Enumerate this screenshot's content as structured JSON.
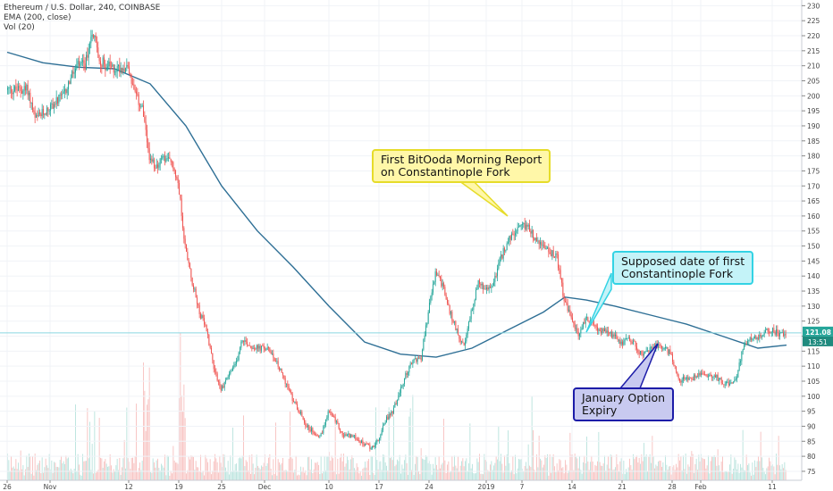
{
  "header": {
    "symbol_line": "Ethereum / U.S. Dollar, 240, COINBASE",
    "ema_line": "EMA (200, close)",
    "vol_line": "Vol (20)"
  },
  "chart_data": {
    "type": "candlestick",
    "title": "Ethereum / U.S. Dollar, 240, COINBASE",
    "ylim": [
      72,
      231
    ],
    "y_ticks": [
      75,
      80,
      85,
      90,
      95,
      100,
      105,
      110,
      115,
      120,
      125,
      130,
      135,
      140,
      145,
      150,
      155,
      160,
      165,
      170,
      175,
      180,
      185,
      190,
      195,
      200,
      205,
      210,
      215,
      220,
      225,
      230
    ],
    "x_labels": [
      {
        "label": "26",
        "t": 0
      },
      {
        "label": "Nov",
        "t": 6
      },
      {
        "label": "12",
        "t": 17
      },
      {
        "label": "19",
        "t": 24
      },
      {
        "label": "25",
        "t": 30
      },
      {
        "label": "Dec",
        "t": 36
      },
      {
        "label": "10",
        "t": 45
      },
      {
        "label": "17",
        "t": 52
      },
      {
        "label": "24",
        "t": 59
      },
      {
        "label": "2019",
        "t": 67
      },
      {
        "label": "7",
        "t": 72
      },
      {
        "label": "14",
        "t": 79
      },
      {
        "label": "21",
        "t": 86
      },
      {
        "label": "28",
        "t": 93
      },
      {
        "label": "Feb",
        "t": 97
      },
      {
        "label": "11",
        "t": 107
      }
    ],
    "x_unit_note": "t = day index from Oct 26",
    "price_path": [
      [
        0,
        202
      ],
      [
        3,
        202
      ],
      [
        4,
        192
      ],
      [
        6,
        196
      ],
      [
        8,
        200
      ],
      [
        9,
        206
      ],
      [
        10,
        210
      ],
      [
        11,
        210
      ],
      [
        12,
        222
      ],
      [
        13,
        212
      ],
      [
        14,
        210
      ],
      [
        15,
        209
      ],
      [
        17,
        210
      ],
      [
        18,
        200
      ],
      [
        19,
        196
      ],
      [
        20,
        178
      ],
      [
        21,
        177
      ],
      [
        22,
        179
      ],
      [
        23,
        178
      ],
      [
        24,
        172
      ],
      [
        25,
        150
      ],
      [
        26,
        138
      ],
      [
        27,
        128
      ],
      [
        28,
        122
      ],
      [
        29,
        110
      ],
      [
        30,
        102
      ],
      [
        31,
        107
      ],
      [
        32,
        110
      ],
      [
        33,
        119
      ],
      [
        34,
        117
      ],
      [
        35,
        116
      ],
      [
        36,
        116
      ],
      [
        37,
        115
      ],
      [
        38,
        110
      ],
      [
        39,
        105
      ],
      [
        40,
        99
      ],
      [
        41,
        95
      ],
      [
        42,
        90
      ],
      [
        43,
        88
      ],
      [
        44,
        87
      ],
      [
        45,
        95
      ],
      [
        46,
        92
      ],
      [
        47,
        87
      ],
      [
        48,
        87
      ],
      [
        49,
        86
      ],
      [
        50,
        84
      ],
      [
        51,
        83
      ],
      [
        52,
        85
      ],
      [
        53,
        92
      ],
      [
        54,
        95
      ],
      [
        55,
        101
      ],
      [
        56,
        108
      ],
      [
        57,
        112
      ],
      [
        58,
        113
      ],
      [
        59,
        128
      ],
      [
        60,
        141
      ],
      [
        61,
        137
      ],
      [
        62,
        128
      ],
      [
        63,
        122
      ],
      [
        64,
        116
      ],
      [
        65,
        128
      ],
      [
        66,
        138
      ],
      [
        67,
        135
      ],
      [
        68,
        137
      ],
      [
        69,
        145
      ],
      [
        70,
        151
      ],
      [
        71,
        154
      ],
      [
        72,
        156
      ],
      [
        73,
        157
      ],
      [
        74,
        152
      ],
      [
        75,
        150
      ],
      [
        76,
        148
      ],
      [
        77,
        146
      ],
      [
        78,
        132
      ],
      [
        79,
        126
      ],
      [
        80,
        120
      ],
      [
        81,
        126
      ],
      [
        82,
        124
      ],
      [
        83,
        122
      ],
      [
        84,
        121
      ],
      [
        85,
        120
      ],
      [
        86,
        118
      ],
      [
        87,
        119
      ],
      [
        88,
        117
      ],
      [
        89,
        113
      ],
      [
        90,
        116
      ],
      [
        91,
        117
      ],
      [
        92,
        116
      ],
      [
        93,
        114
      ],
      [
        94,
        105
      ],
      [
        95,
        106
      ],
      [
        96,
        106
      ],
      [
        97,
        108
      ],
      [
        98,
        107
      ],
      [
        99,
        107
      ],
      [
        100,
        105
      ],
      [
        101,
        104
      ],
      [
        102,
        105
      ],
      [
        103,
        116
      ],
      [
        104,
        120
      ],
      [
        105,
        119
      ],
      [
        106,
        121
      ],
      [
        107,
        122
      ],
      [
        108,
        121
      ],
      [
        109,
        121
      ]
    ],
    "ema200": {
      "name": "EMA (200, close)",
      "points": [
        [
          0,
          214.5
        ],
        [
          5,
          211
        ],
        [
          10,
          209.5
        ],
        [
          15,
          209
        ],
        [
          20,
          204
        ],
        [
          25,
          190
        ],
        [
          30,
          170
        ],
        [
          35,
          155
        ],
        [
          40,
          143
        ],
        [
          45,
          130
        ],
        [
          50,
          118
        ],
        [
          55,
          114
        ],
        [
          60,
          113
        ],
        [
          65,
          116
        ],
        [
          70,
          122
        ],
        [
          75,
          128
        ],
        [
          78,
          133
        ],
        [
          81,
          132
        ],
        [
          85,
          130
        ],
        [
          90,
          127
        ],
        [
          95,
          124
        ],
        [
          100,
          120
        ],
        [
          105,
          116
        ],
        [
          109,
          117
        ]
      ]
    },
    "last_price": "121.08",
    "last_price_time": "13:51",
    "annotations": [
      {
        "text": [
          "First BitOoda Morning Report",
          "on Constantinople Fork"
        ],
        "t": 74,
        "price": 160,
        "fill": "#fff7a8",
        "stroke": "#e6dc2a"
      },
      {
        "text": [
          "Supposed date of first",
          "Constantinople Fork"
        ],
        "t": 81,
        "price": 121,
        "fill": "#c4f3f8",
        "stroke": "#33d3e4"
      },
      {
        "text": [
          "January Option",
          "Expiry"
        ],
        "t": 91,
        "price": 116,
        "fill": "#c8caf0",
        "stroke": "#1c1ca8"
      }
    ],
    "colors": {
      "up": "#26a69a",
      "down": "#ef5350",
      "ema": "#2e6f95",
      "price_line": "#8ad6e0",
      "price_label": "#26a69a"
    }
  }
}
